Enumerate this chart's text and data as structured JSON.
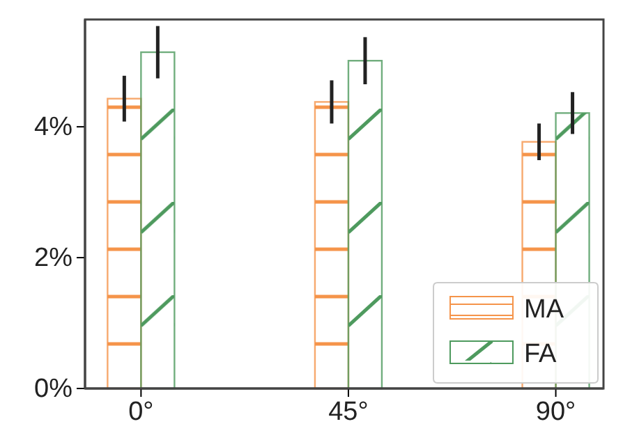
{
  "chart_data": {
    "type": "bar",
    "categories": [
      "0°",
      "45°",
      "90°"
    ],
    "series": [
      {
        "name": "MA",
        "color": "#f5944a",
        "values": [
          4.43,
          4.38,
          3.77
        ],
        "errors": [
          0.35,
          0.33,
          0.28
        ]
      },
      {
        "name": "FA",
        "color": "#4e9a5e",
        "values": [
          5.14,
          5.01,
          4.21
        ],
        "errors": [
          0.4,
          0.36,
          0.32
        ]
      }
    ],
    "ylim": [
      0,
      5.64
    ],
    "yticks": [
      {
        "value": 0,
        "label": "0%"
      },
      {
        "value": 2,
        "label": "2%"
      },
      {
        "value": 4,
        "label": "4%"
      }
    ],
    "grid": false,
    "legend": "bottom right"
  }
}
